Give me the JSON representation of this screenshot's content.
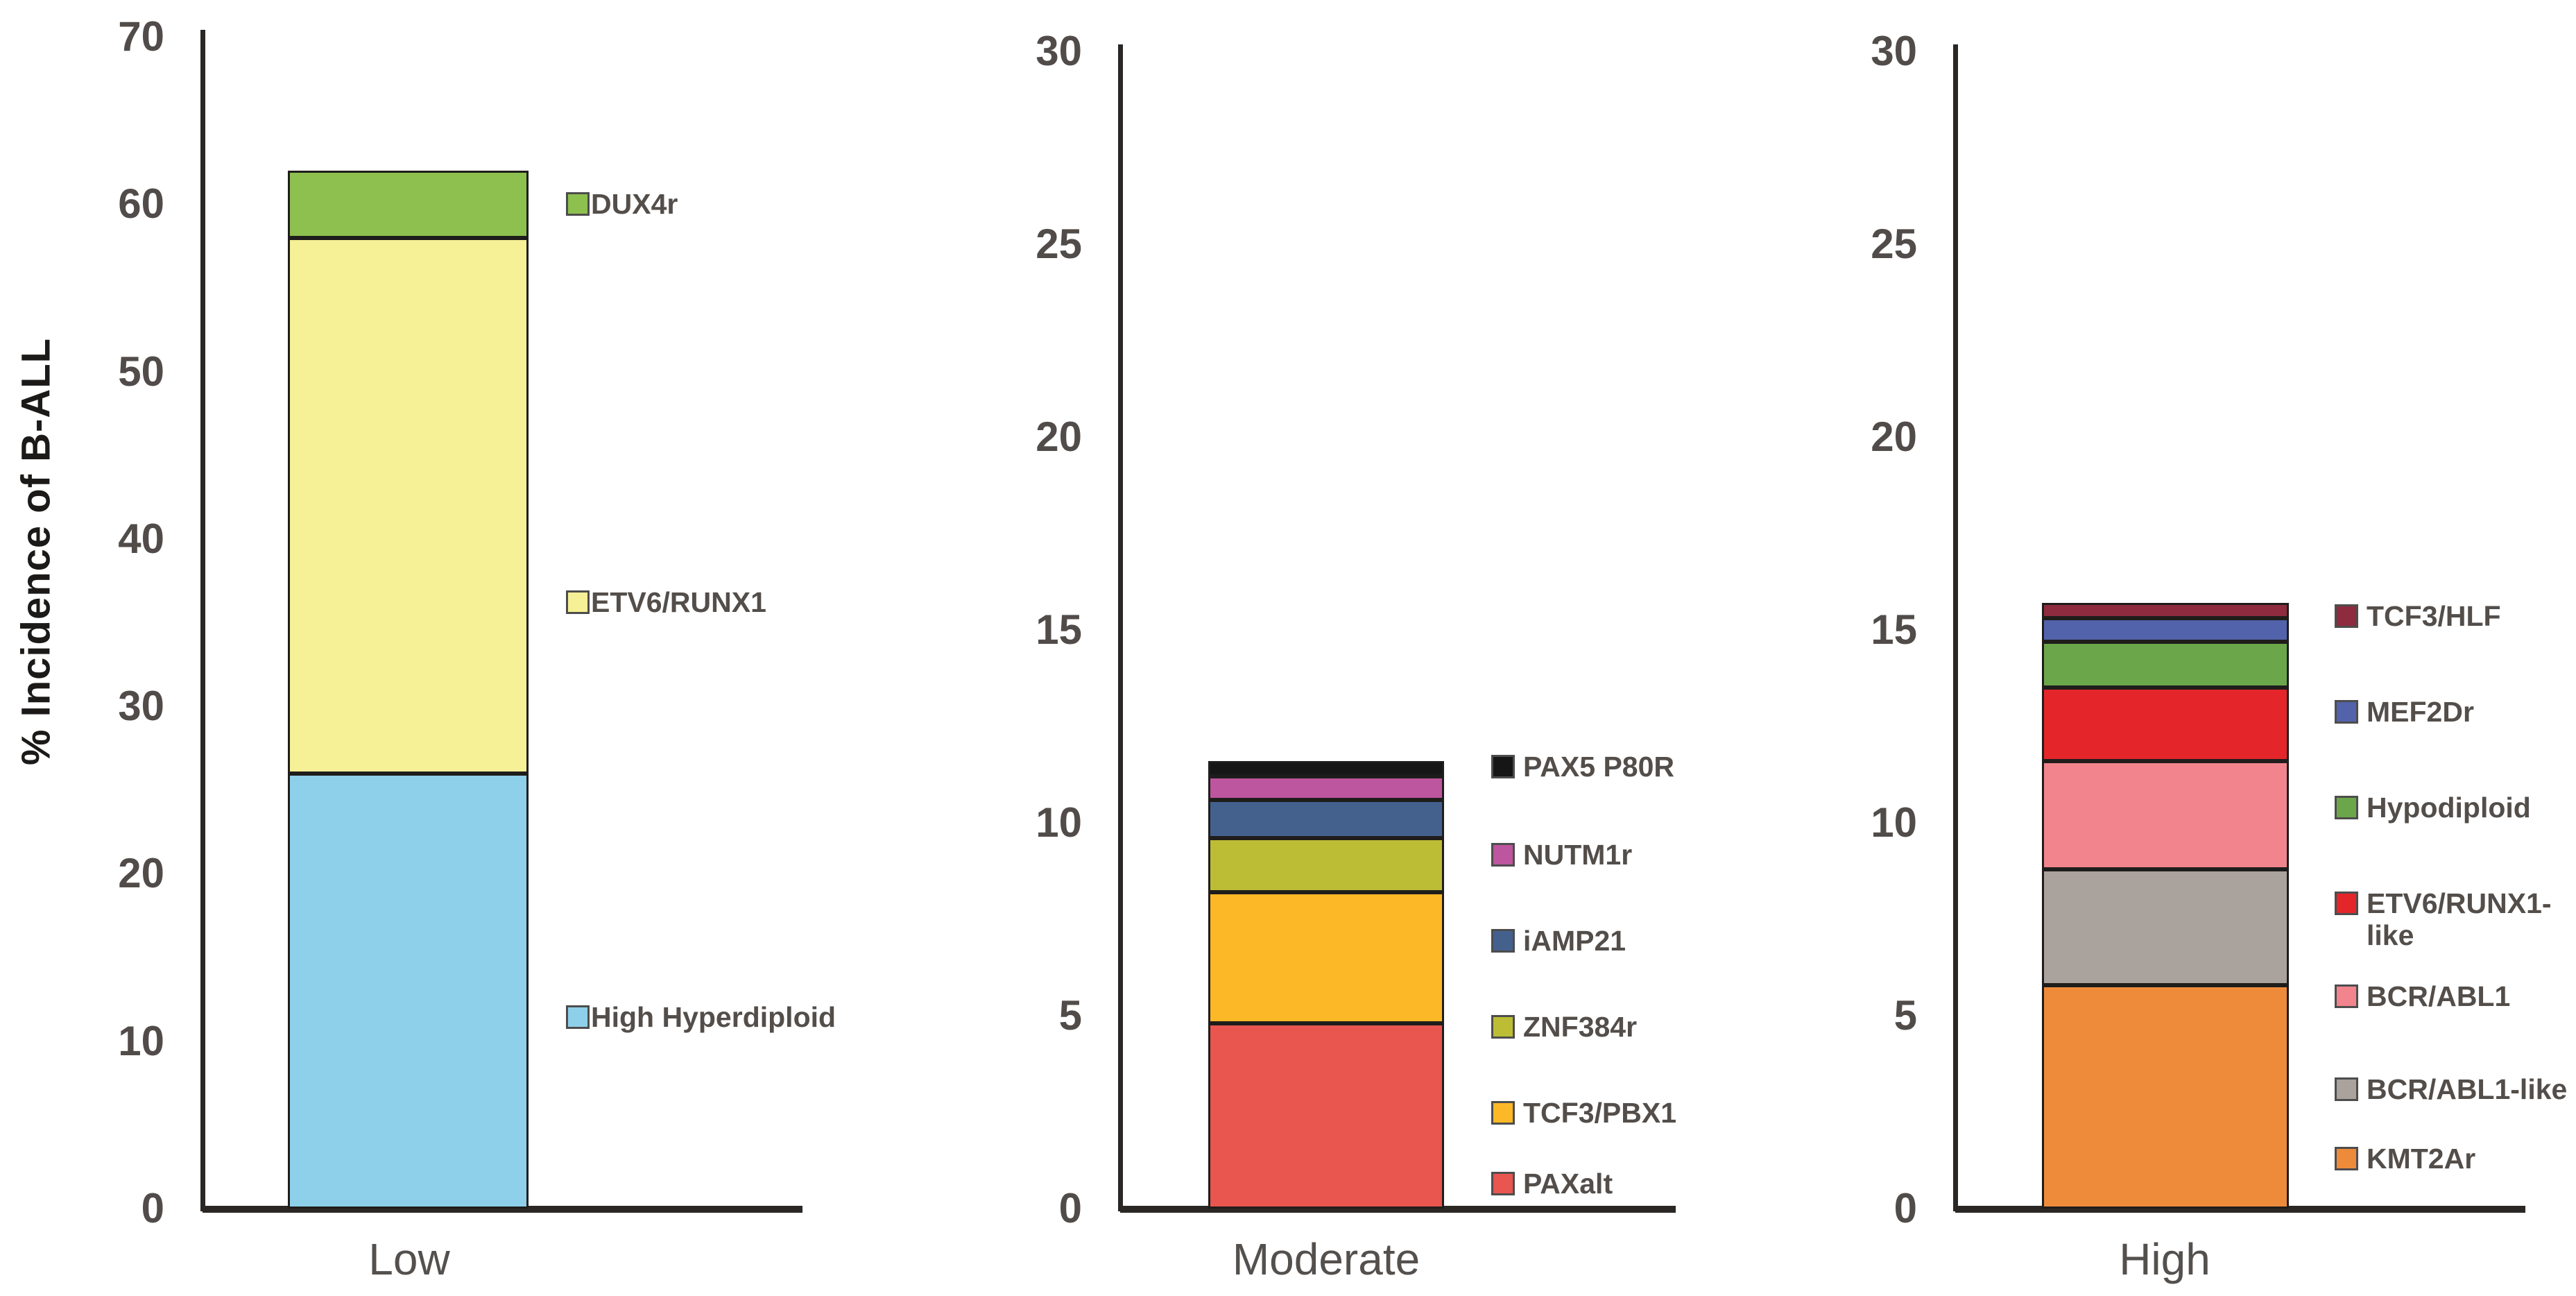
{
  "figure": {
    "ylabel": "% Incidence of B-ALL",
    "background_color": "#ffffff",
    "axis_color": "#2a2724",
    "tick_text_color": "#514c49",
    "legend_text_color": "#534e4a",
    "category_text_color": "#54504d"
  },
  "chart_data": [
    {
      "type": "bar",
      "stacked": true,
      "category": "Low",
      "ylim": [
        0,
        70
      ],
      "yticks": [
        0,
        10,
        20,
        30,
        40,
        50,
        60,
        70
      ],
      "grid": false,
      "legend_position": "right",
      "segments": [
        {
          "label": "High Hyperdiploid",
          "value": 26,
          "color": "#8ed0ea"
        },
        {
          "label": "ETV6/RUNX1",
          "value": 32,
          "color": "#f6f096"
        },
        {
          "label": "DUX4r",
          "value": 4,
          "color": "#8dc04e"
        }
      ]
    },
    {
      "type": "bar",
      "stacked": true,
      "category": "Moderate",
      "ylim": [
        0,
        30
      ],
      "yticks": [
        0,
        5,
        10,
        15,
        20,
        25,
        30
      ],
      "grid": false,
      "legend_position": "right",
      "segments": [
        {
          "label": "PAXalt",
          "value": 4.8,
          "color": "#e9554f"
        },
        {
          "label": "TCF3/PBX1",
          "value": 3.4,
          "color": "#fcb826"
        },
        {
          "label": "ZNF384r",
          "value": 1.4,
          "color": "#bcbd35"
        },
        {
          "label": "iAMP21",
          "value": 1.0,
          "color": "#44618e"
        },
        {
          "label": "NUTM1r",
          "value": 0.6,
          "color": "#bd559f"
        },
        {
          "label": "PAX5 P80R",
          "value": 0.4,
          "color": "#161616"
        }
      ]
    },
    {
      "type": "bar",
      "stacked": true,
      "category": "High",
      "ylim": [
        0,
        30
      ],
      "yticks": [
        0,
        5,
        10,
        15,
        20,
        25,
        30
      ],
      "grid": false,
      "legend_position": "right",
      "segments": [
        {
          "label": "KMT2Ar",
          "value": 5.8,
          "color": "#ee8b3b"
        },
        {
          "label": "BCR/ABL1-like",
          "value": 3.0,
          "color": "#aaa29c"
        },
        {
          "label": "BCR/ABL1",
          "value": 2.8,
          "color": "#f2848e"
        },
        {
          "label": "ETV6/RUNX1-like",
          "value": 1.9,
          "color": "#e4262a",
          "label_lines": [
            "ETV6/RUNX1-",
            "like"
          ]
        },
        {
          "label": "Hypodiploid",
          "value": 1.2,
          "color": "#6ba74a"
        },
        {
          "label": "MEF2Dr",
          "value": 0.6,
          "color": "#5263ab"
        },
        {
          "label": "TCF3/HLF",
          "value": 0.4,
          "color": "#8e2b3e"
        }
      ]
    }
  ]
}
